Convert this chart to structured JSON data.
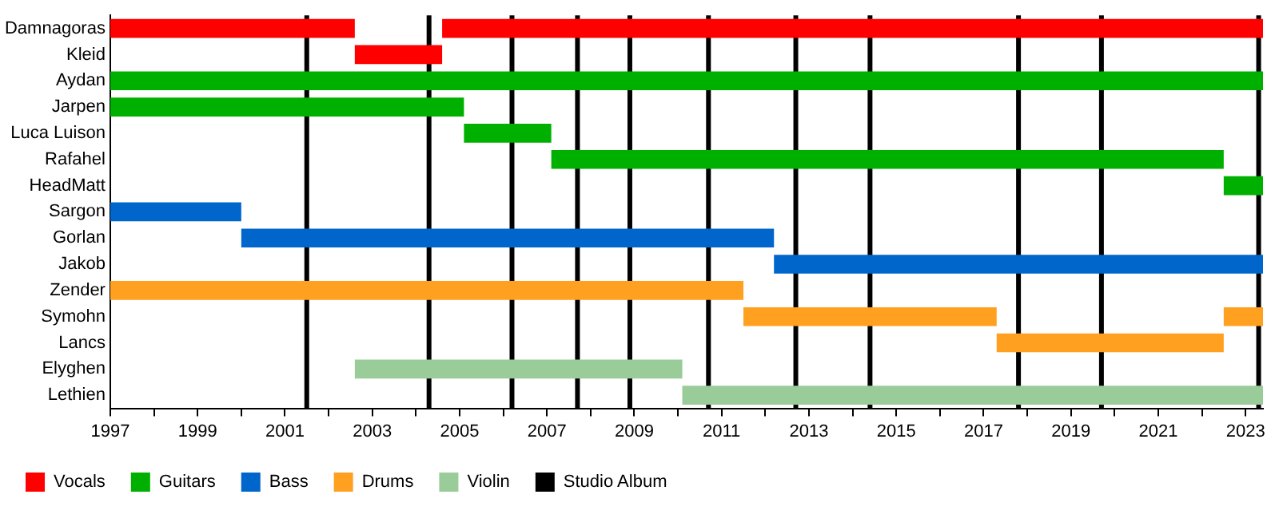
{
  "chart_data": {
    "type": "bar",
    "orientation": "horizontal",
    "categories": [
      "Damnagoras",
      "Kleid",
      "Aydan",
      "Jarpen",
      "Luca Luison",
      "Rafahel",
      "HeadMatt",
      "Sargon",
      "Gorlan",
      "Jakob",
      "Zender",
      "Symohn",
      "Lancs",
      "Elyghen",
      "Lethien"
    ],
    "series": [
      {
        "name": "Vocals",
        "color": "#ff0000",
        "values": [
          5.6,
          2.0,
          null,
          null,
          null,
          null,
          null,
          null,
          null,
          null,
          null,
          null,
          null,
          null,
          null
        ],
        "base": [
          1997,
          2002.6,
          null,
          null,
          null,
          null,
          null,
          null,
          null,
          null,
          null,
          null,
          null,
          null,
          null
        ]
      },
      {
        "color": "#ff0000",
        "values": [
          18.8,
          null,
          null,
          null,
          null,
          null,
          null,
          null,
          null,
          null,
          null,
          null,
          null,
          null,
          null
        ],
        "base": [
          2004.6,
          null,
          null,
          null,
          null,
          null,
          null,
          null,
          null,
          null,
          null,
          null,
          null,
          null,
          null
        ]
      },
      {
        "name": "Guitars",
        "color": "#00b000",
        "values": [
          null,
          null,
          26.4,
          8.1,
          2.0,
          15.4,
          0.9,
          null,
          null,
          null,
          null,
          null,
          null,
          null,
          null
        ],
        "base": [
          null,
          null,
          1997,
          1997,
          2005.1,
          2007.1,
          2022.5,
          null,
          null,
          null,
          null,
          null,
          null,
          null,
          null
        ]
      },
      {
        "name": "Bass",
        "color": "#0066cc",
        "values": [
          null,
          null,
          null,
          null,
          null,
          null,
          null,
          3.0,
          12.2,
          11.2,
          null,
          null,
          null,
          null,
          null
        ],
        "base": [
          null,
          null,
          null,
          null,
          null,
          null,
          null,
          1997,
          2000.0,
          2012.2,
          null,
          null,
          null,
          null,
          null
        ]
      },
      {
        "name": "Drums",
        "color": "#ffa020",
        "values": [
          null,
          null,
          null,
          null,
          null,
          null,
          null,
          null,
          null,
          null,
          14.5,
          5.8,
          5.2,
          null,
          null
        ],
        "base": [
          null,
          null,
          null,
          null,
          null,
          null,
          null,
          null,
          null,
          null,
          1997,
          2011.5,
          2017.3,
          null,
          null
        ]
      },
      {
        "color": "#ffa020",
        "values": [
          null,
          null,
          null,
          null,
          null,
          null,
          null,
          null,
          null,
          null,
          null,
          0.9,
          null,
          null,
          null
        ],
        "base": [
          null,
          null,
          null,
          null,
          null,
          null,
          null,
          null,
          null,
          null,
          null,
          2022.5,
          null,
          null,
          null
        ]
      },
      {
        "name": "Violin",
        "color": "#99cc99",
        "values": [
          null,
          null,
          null,
          null,
          null,
          null,
          null,
          null,
          null,
          null,
          null,
          null,
          null,
          7.5,
          13.3
        ],
        "base": [
          null,
          null,
          null,
          null,
          null,
          null,
          null,
          null,
          null,
          null,
          null,
          null,
          null,
          2002.6,
          2010.1
        ]
      }
    ],
    "xlim": [
      1997,
      2023.4
    ],
    "xticks": [
      1997,
      {
        "value": 1998,
        "label": null
      },
      1999,
      {
        "value": 2000,
        "label": null
      },
      2001,
      {
        "value": 2002,
        "label": null
      },
      2003,
      {
        "value": 2004,
        "label": null
      },
      2005,
      {
        "value": 2006,
        "label": null
      },
      2007,
      {
        "value": 2008,
        "label": null
      },
      2009,
      {
        "value": 2010,
        "label": null
      },
      2011,
      {
        "value": 2012,
        "label": null
      },
      2013,
      {
        "value": 2014,
        "label": null
      },
      2015,
      {
        "value": 2016,
        "label": null
      },
      2017,
      {
        "value": 2018,
        "label": null
      },
      2019,
      {
        "value": 2020,
        "label": null
      },
      2021,
      {
        "value": 2022,
        "label": null
      },
      2023
    ],
    "ref_lines": [
      {
        "axis": "x",
        "value": 2001.5,
        "label": "Studio Album",
        "color": "#000000"
      },
      {
        "axis": "x",
        "value": 2004.3,
        "color": "#000000"
      },
      {
        "axis": "x",
        "value": 2006.2,
        "color": "#000000"
      },
      {
        "axis": "x",
        "value": 2007.7,
        "color": "#000000"
      },
      {
        "axis": "x",
        "value": 2008.9,
        "color": "#000000"
      },
      {
        "axis": "x",
        "value": 2010.7,
        "color": "#000000"
      },
      {
        "axis": "x",
        "value": 2012.7,
        "color": "#000000"
      },
      {
        "axis": "x",
        "value": 2014.4,
        "color": "#000000"
      },
      {
        "axis": "x",
        "value": 2017.8,
        "color": "#000000"
      },
      {
        "axis": "x",
        "value": 2019.7,
        "color": "#000000"
      },
      {
        "axis": "x",
        "value": 2023.3,
        "color": "#000000"
      }
    ],
    "grid": false,
    "legend": "bottom left"
  }
}
